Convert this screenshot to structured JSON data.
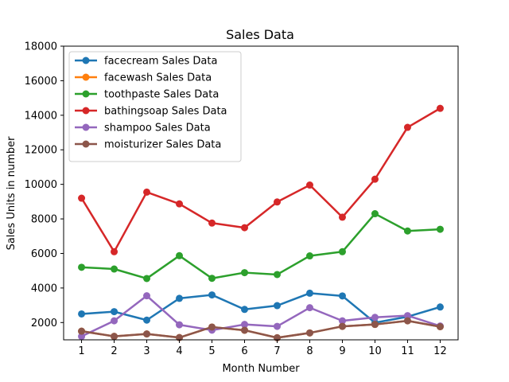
{
  "chart_data": {
    "type": "line",
    "title": "Sales Data",
    "xlabel": "Month Number",
    "ylabel": "Sales Units in number",
    "x": [
      1,
      2,
      3,
      4,
      5,
      6,
      7,
      8,
      9,
      10,
      11,
      12
    ],
    "xticks": [
      "1",
      "2",
      "3",
      "4",
      "5",
      "6",
      "7",
      "8",
      "9",
      "10",
      "11",
      "12"
    ],
    "yticks": [
      2000,
      4000,
      6000,
      8000,
      10000,
      12000,
      14000,
      16000,
      18000
    ],
    "ytick_labels": [
      "2000",
      "4000",
      "6000",
      "8000",
      "10000",
      "12000",
      "14000",
      "16000",
      "18000"
    ],
    "xlim": [
      0.45,
      12.55
    ],
    "ylim": [
      1000,
      18000
    ],
    "grid": false,
    "legend_position": "top-left",
    "series": [
      {
        "name": "facecream Sales Data",
        "color": "#1f77b4",
        "values": [
          2500,
          2630,
          2140,
          3400,
          3600,
          2760,
          2980,
          3700,
          3540,
          1990,
          2340,
          2900
        ]
      },
      {
        "name": "facewash Sales Data",
        "color": "#ff7f0e",
        "values": [
          1500,
          1200,
          1340,
          1130,
          1740,
          1555,
          1120,
          1400,
          1780,
          1890,
          2100,
          1760
        ]
      },
      {
        "name": "toothpaste Sales Data",
        "color": "#2ca02c",
        "values": [
          5200,
          5100,
          4550,
          5870,
          4560,
          4890,
          4780,
          5860,
          6100,
          8300,
          7300,
          7400
        ]
      },
      {
        "name": "bathingsoap Sales Data",
        "color": "#d62728",
        "values": [
          9200,
          6100,
          9550,
          8870,
          7760,
          7490,
          8980,
          9960,
          8100,
          10300,
          13300,
          14400
        ]
      },
      {
        "name": "shampoo Sales Data",
        "color": "#9467bd",
        "values": [
          1200,
          2100,
          3550,
          1870,
          1560,
          1890,
          1780,
          2860,
          2100,
          2300,
          2400,
          1800
        ]
      },
      {
        "name": "moisturizer Sales Data",
        "color": "#8c564b",
        "values": [
          1500,
          1200,
          1340,
          1130,
          1740,
          1555,
          1120,
          1400,
          1780,
          1890,
          2100,
          1760
        ]
      }
    ]
  }
}
